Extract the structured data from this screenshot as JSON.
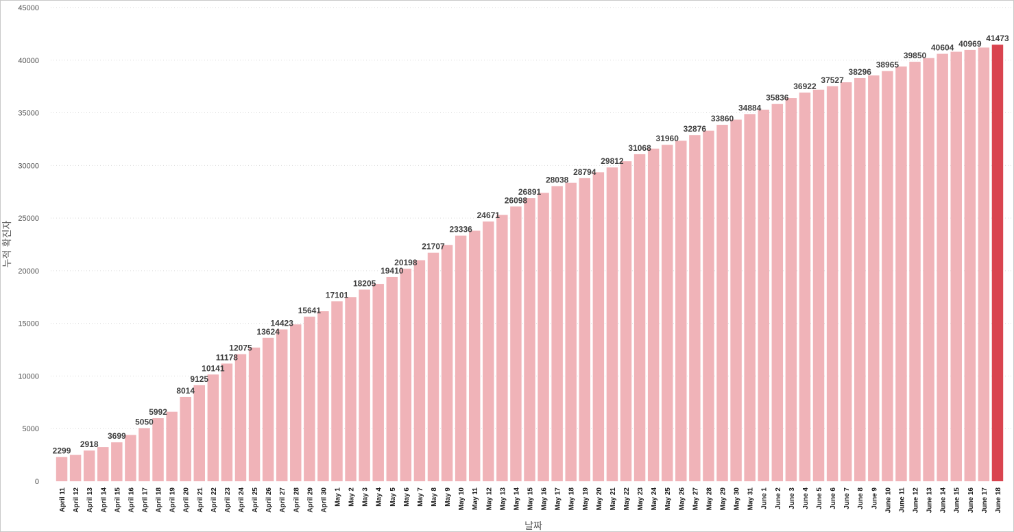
{
  "chart_data": {
    "type": "bar",
    "title": "",
    "xlabel": "날짜",
    "ylabel": "누적 확진자",
    "ylim": [
      0,
      45000
    ],
    "yticks": [
      0,
      5000,
      10000,
      15000,
      20000,
      25000,
      30000,
      35000,
      40000,
      45000
    ],
    "grid": "horizontal dotted",
    "colors": {
      "bar": "#f0b3b8",
      "highlight": "#d9444f"
    },
    "highlight_index": 68,
    "categories": [
      "April 11",
      "April 12",
      "April 13",
      "April 14",
      "April 15",
      "April 16",
      "April 17",
      "April 18",
      "April 19",
      "April 20",
      "April 21",
      "April 22",
      "April 23",
      "April 24",
      "April 25",
      "April 26",
      "April 27",
      "April 28",
      "April 29",
      "April 30",
      "May 1",
      "May 2",
      "May 3",
      "May 4",
      "May 5",
      "May 6",
      "May 7",
      "May 8",
      "May 9",
      "May 10",
      "May 11",
      "May 12",
      "May 13",
      "May 14",
      "May 15",
      "May 16",
      "May 17",
      "May 18",
      "May 19",
      "May 20",
      "May 21",
      "May 22",
      "May 23",
      "May 24",
      "May 25",
      "May 26",
      "May 27",
      "May 28",
      "May 29",
      "May 30",
      "May 31",
      "June 1",
      "June 2",
      "June 3",
      "June 4",
      "June 5",
      "June 6",
      "June 7",
      "June 8",
      "June 9",
      "June 10",
      "June 11",
      "June 12",
      "June 13",
      "June 14",
      "June 15",
      "June 16",
      "June 17",
      "June 18"
    ],
    "values": [
      2299,
      2500,
      2918,
      3250,
      3699,
      4400,
      5050,
      5992,
      6600,
      8014,
      9125,
      10141,
      11178,
      12075,
      12700,
      13624,
      14423,
      14900,
      15641,
      16150,
      17101,
      17500,
      18205,
      18750,
      19410,
      20198,
      21000,
      21707,
      22450,
      23336,
      23800,
      24671,
      25300,
      26098,
      26891,
      27400,
      28038,
      28350,
      28794,
      29350,
      29812,
      30400,
      31068,
      31600,
      31960,
      32350,
      32876,
      33300,
      33860,
      34350,
      34884,
      35300,
      35836,
      36400,
      36922,
      37200,
      37527,
      37900,
      38296,
      38550,
      38965,
      39400,
      39850,
      40200,
      40604,
      40800,
      40969,
      41200,
      41473
    ],
    "data_labels": [
      {
        "index": 0,
        "text": "2299"
      },
      {
        "index": 2,
        "text": "2918"
      },
      {
        "index": 4,
        "text": "3699"
      },
      {
        "index": 6,
        "text": "5050"
      },
      {
        "index": 7,
        "text": "5992"
      },
      {
        "index": 9,
        "text": "8014"
      },
      {
        "index": 10,
        "text": "9125"
      },
      {
        "index": 11,
        "text": "10141"
      },
      {
        "index": 12,
        "text": "11178"
      },
      {
        "index": 13,
        "text": "12075"
      },
      {
        "index": 15,
        "text": "13624"
      },
      {
        "index": 16,
        "text": "14423"
      },
      {
        "index": 18,
        "text": "15641"
      },
      {
        "index": 20,
        "text": "17101"
      },
      {
        "index": 22,
        "text": "18205"
      },
      {
        "index": 24,
        "text": "19410"
      },
      {
        "index": 25,
        "text": "20198"
      },
      {
        "index": 27,
        "text": "21707"
      },
      {
        "index": 29,
        "text": "23336"
      },
      {
        "index": 31,
        "text": "24671"
      },
      {
        "index": 33,
        "text": "26098"
      },
      {
        "index": 34,
        "text": "26891"
      },
      {
        "index": 36,
        "text": "28038"
      },
      {
        "index": 38,
        "text": "28794"
      },
      {
        "index": 40,
        "text": "29812"
      },
      {
        "index": 42,
        "text": "31068"
      },
      {
        "index": 44,
        "text": "31960"
      },
      {
        "index": 46,
        "text": "32876"
      },
      {
        "index": 48,
        "text": "33860"
      },
      {
        "index": 50,
        "text": "34884"
      },
      {
        "index": 52,
        "text": "35836"
      },
      {
        "index": 54,
        "text": "36922"
      },
      {
        "index": 56,
        "text": "37527"
      },
      {
        "index": 58,
        "text": "38296"
      },
      {
        "index": 60,
        "text": "38965"
      },
      {
        "index": 62,
        "text": "39850"
      },
      {
        "index": 64,
        "text": "40604"
      },
      {
        "index": 66,
        "text": "40969"
      },
      {
        "index": 68,
        "text": "41473"
      }
    ]
  }
}
